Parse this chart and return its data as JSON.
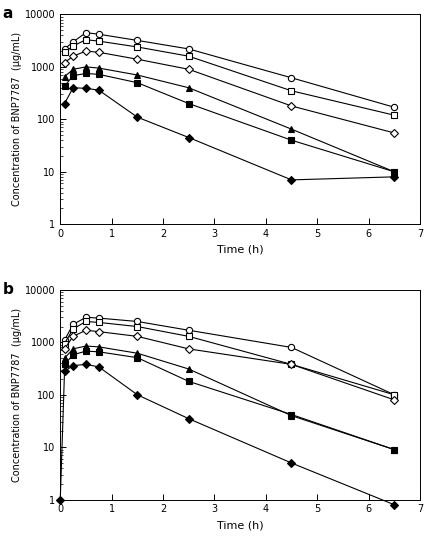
{
  "panel_a": {
    "series": [
      {
        "label": "circle_open",
        "marker": "o",
        "fillstyle": "none",
        "color": "black",
        "x": [
          0.083,
          0.25,
          0.5,
          0.75,
          1.5,
          2.5,
          4.5,
          6.5
        ],
        "y": [
          2200,
          3000,
          4500,
          4200,
          3200,
          2200,
          620,
          170
        ]
      },
      {
        "label": "square_open",
        "marker": "s",
        "fillstyle": "none",
        "color": "black",
        "x": [
          0.083,
          0.25,
          0.5,
          0.75,
          1.5,
          2.5,
          4.5,
          6.5
        ],
        "y": [
          1900,
          2500,
          3300,
          3100,
          2400,
          1600,
          350,
          120
        ]
      },
      {
        "label": "diamond_open",
        "marker": "D",
        "fillstyle": "none",
        "color": "black",
        "x": [
          0.083,
          0.25,
          0.5,
          0.75,
          1.5,
          2.5,
          4.5,
          6.5
        ],
        "y": [
          1200,
          1600,
          2000,
          1900,
          1400,
          900,
          180,
          55
        ]
      },
      {
        "label": "triangle_filled",
        "marker": "^",
        "fillstyle": "full",
        "color": "black",
        "x": [
          0.083,
          0.25,
          0.5,
          0.75,
          1.5,
          2.5,
          4.5,
          6.5
        ],
        "y": [
          650,
          900,
          1000,
          950,
          700,
          400,
          65,
          10
        ]
      },
      {
        "label": "square_filled",
        "marker": "s",
        "fillstyle": "full",
        "color": "black",
        "x": [
          0.083,
          0.25,
          0.5,
          0.75,
          1.5,
          2.5,
          4.5,
          6.5
        ],
        "y": [
          430,
          680,
          750,
          720,
          500,
          200,
          40,
          10
        ]
      },
      {
        "label": "diamond_filled",
        "marker": "D",
        "fillstyle": "full",
        "color": "black",
        "x": [
          0.083,
          0.25,
          0.5,
          0.75,
          1.5,
          2.5,
          4.5,
          6.5
        ],
        "y": [
          200,
          400,
          390,
          360,
          110,
          45,
          7,
          8
        ]
      }
    ],
    "xlabel": "Time (h)",
    "ylabel": "Concentration of BNP7787  (μg/mL)",
    "ylim": [
      1,
      10000
    ],
    "xlim": [
      0,
      7
    ],
    "xticks": [
      0,
      1,
      2,
      3,
      4,
      5,
      6,
      7
    ],
    "panel_label": "a"
  },
  "panel_b": {
    "series": [
      {
        "label": "circle_open",
        "marker": "o",
        "fillstyle": "none",
        "color": "black",
        "x": [
          0.083,
          0.25,
          0.5,
          0.75,
          1.5,
          2.5,
          4.5,
          6.5
        ],
        "y": [
          1100,
          2200,
          3000,
          2900,
          2500,
          1700,
          800,
          100
        ]
      },
      {
        "label": "square_open",
        "marker": "s",
        "fillstyle": "none",
        "color": "black",
        "x": [
          0.083,
          0.25,
          0.5,
          0.75,
          1.5,
          2.5,
          4.5,
          6.5
        ],
        "y": [
          950,
          1800,
          2500,
          2400,
          2000,
          1300,
          380,
          100
        ]
      },
      {
        "label": "diamond_open",
        "marker": "D",
        "fillstyle": "none",
        "color": "black",
        "x": [
          0.083,
          0.25,
          0.5,
          0.75,
          1.5,
          2.5,
          4.5,
          6.5
        ],
        "y": [
          750,
          1300,
          1700,
          1600,
          1300,
          750,
          380,
          80
        ]
      },
      {
        "label": "triangle_filled",
        "marker": "^",
        "fillstyle": "full",
        "color": "black",
        "x": [
          0.083,
          0.25,
          0.5,
          0.75,
          1.5,
          2.5,
          4.5,
          6.5
        ],
        "y": [
          500,
          750,
          850,
          820,
          620,
          310,
          40,
          9
        ]
      },
      {
        "label": "square_filled",
        "marker": "s",
        "fillstyle": "full",
        "color": "black",
        "x": [
          0.083,
          0.25,
          0.5,
          0.75,
          1.5,
          2.5,
          4.5,
          6.5
        ],
        "y": [
          380,
          580,
          680,
          660,
          510,
          180,
          42,
          9
        ]
      },
      {
        "label": "diamond_filled",
        "marker": "D",
        "fillstyle": "full",
        "color": "black",
        "x": [
          0.0,
          0.083,
          0.25,
          0.5,
          0.75,
          1.5,
          2.5,
          4.5,
          6.5
        ],
        "y": [
          1,
          280,
          360,
          380,
          340,
          100,
          35,
          5,
          0.8
        ]
      }
    ],
    "xlabel": "Time (h)",
    "ylabel": "Concentration of BNP7787  (μg/mL)",
    "ylim": [
      1,
      10000
    ],
    "xlim": [
      0,
      7
    ],
    "xticks": [
      0,
      1,
      2,
      3,
      4,
      5,
      6,
      7
    ],
    "panel_label": "b"
  },
  "line_color": "black",
  "line_width": 0.8,
  "marker_size": 4.5
}
